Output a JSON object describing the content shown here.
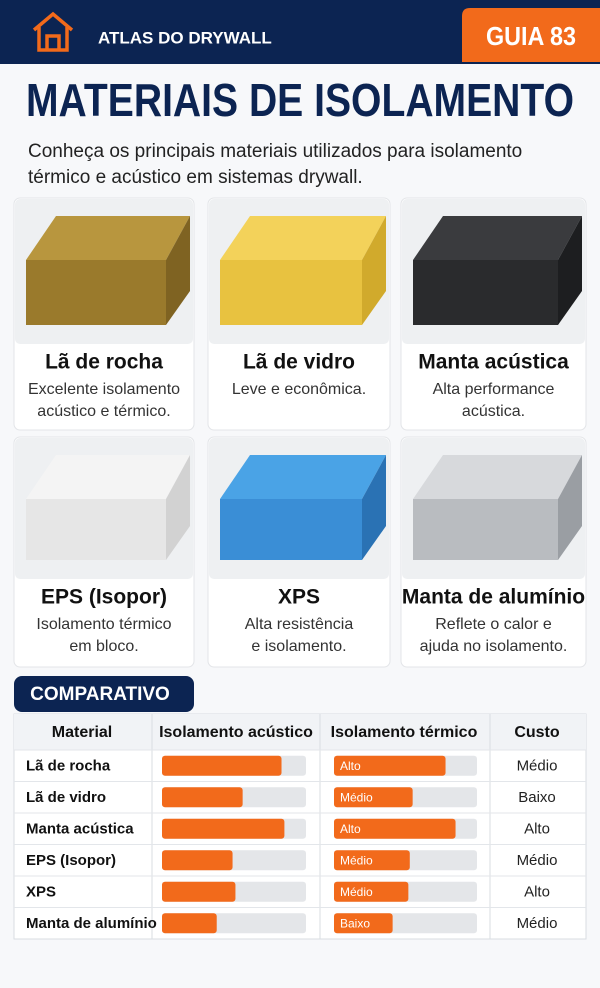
{
  "header": {
    "brand": "ATLAS DO DRYWALL",
    "badge": "GUIA 83"
  },
  "title": "MATERIAIS DE ISOLAMENTO",
  "subtitle": [
    "Conheça os principais materiais utilizados para isolamento",
    "térmico e acústico em sistemas drywall."
  ],
  "cards": [
    {
      "name": "Lã de rocha",
      "desc": [
        "Excelente isolamento",
        "acústico e térmico."
      ]
    },
    {
      "name": "Lã de vidro",
      "desc": [
        "Leve e econômica."
      ]
    },
    {
      "name": "Manta acústica",
      "desc": [
        "Alta performance",
        "acústica."
      ]
    },
    {
      "name": "EPS (Isopor)",
      "desc": [
        "Isolamento térmico",
        "em bloco."
      ]
    },
    {
      "name": "XPS",
      "desc": [
        "Alta resistência",
        "e isolamento."
      ]
    },
    {
      "name": "Manta de alumínio",
      "desc": [
        "Reflete o calor e",
        "ajuda no isolamento."
      ]
    }
  ],
  "comparison": {
    "title": "COMPARATIVO",
    "headers": [
      "Material",
      "Isolamento acústico",
      "Isolamento térmico",
      "Custo"
    ],
    "rows": [
      {
        "material": "Lã de rocha",
        "acoustic": 83,
        "thermal": 78,
        "thermal_label": "Alto",
        "cost": "Médio"
      },
      {
        "material": "Lã de vidro",
        "acoustic": 56,
        "thermal": 55,
        "thermal_label": "Médio",
        "cost": "Baixo"
      },
      {
        "material": "Manta acústica",
        "acoustic": 85,
        "thermal": 85,
        "thermal_label": "Alto",
        "cost": "Alto"
      },
      {
        "material": "EPS (Isopor)",
        "acoustic": 49,
        "thermal": 53,
        "thermal_label": "Médio",
        "cost": "Médio"
      },
      {
        "material": "XPS",
        "acoustic": 51,
        "thermal": 52,
        "thermal_label": "Médio",
        "cost": "Alto"
      },
      {
        "material": "Manta de alumínio",
        "acoustic": 38,
        "thermal": 41,
        "thermal_label": "Baixo",
        "cost": "Médio"
      }
    ]
  }
}
